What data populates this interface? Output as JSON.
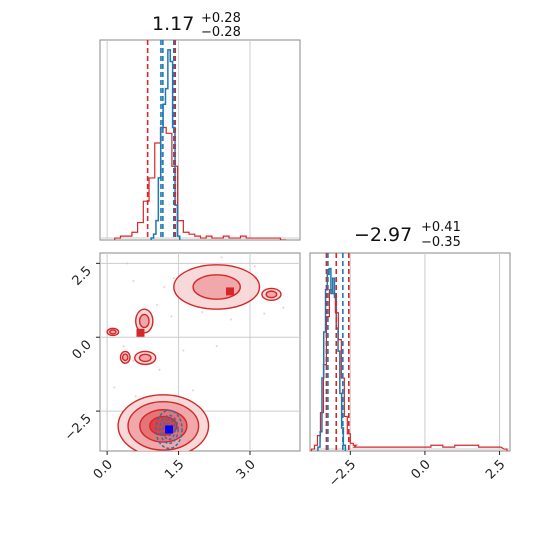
{
  "chart_data": {
    "type": "corner",
    "parameters": [
      {
        "median": "1.17",
        "upper": "+0.28",
        "lower": "−0.28",
        "range": [
          -0.15,
          4.05
        ],
        "ticks": [
          {
            "v": 0.0,
            "label": "0.0"
          },
          {
            "v": 1.5,
            "label": "1.5"
          },
          {
            "v": 3.0,
            "label": "3.0"
          }
        ],
        "quantiles_red": [
          0.85,
          1.43
        ],
        "quantiles_blue": [
          1.13,
          1.17,
          1.4
        ],
        "hist_red_x": [
          0.22,
          0.34,
          0.46,
          0.58,
          0.7,
          0.82,
          0.94,
          1.06,
          1.18,
          1.3,
          1.42,
          1.54,
          1.66,
          1.78,
          1.9,
          2.02,
          2.14,
          2.26,
          2.38,
          2.5,
          2.62,
          2.74,
          2.86,
          2.98,
          3.1,
          3.22,
          3.34,
          3.46,
          3.58,
          3.7
        ],
        "hist_red_y": [
          0.01,
          0.02,
          0.02,
          0.04,
          0.09,
          0.2,
          0.32,
          0.5,
          0.58,
          0.55,
          0.38,
          0.1,
          0.04,
          0.03,
          0.02,
          0.01,
          0.02,
          0.01,
          0.01,
          0.02,
          0.01,
          0.01,
          0.02,
          0.01,
          0.01,
          0.01,
          0.01,
          0.01,
          0.01,
          0.0
        ],
        "hist_blue_x": [
          0.95,
          1.0,
          1.05,
          1.1,
          1.15,
          1.2,
          1.25,
          1.3,
          1.35,
          1.4,
          1.45,
          1.5
        ],
        "hist_blue_y": [
          0.01,
          0.03,
          0.1,
          0.32,
          0.58,
          0.7,
          0.78,
          0.98,
          0.92,
          0.58,
          0.18,
          0.02
        ]
      },
      {
        "median": "−2.97",
        "upper": "+0.41",
        "lower": "−0.35",
        "range": [
          -3.85,
          2.85
        ],
        "ticks": [
          {
            "v": -2.5,
            "label": "−2.5"
          },
          {
            "v": 0.0,
            "label": "0.0"
          },
          {
            "v": 2.5,
            "label": "2.5"
          }
        ],
        "quantiles_red": [
          -3.3,
          -2.97,
          -2.55
        ],
        "quantiles_blue": [
          -3.25,
          -2.75
        ],
        "hist_red_x": [
          -3.75,
          -3.65,
          -3.55,
          -3.45,
          -3.35,
          -3.25,
          -3.15,
          -3.05,
          -2.95,
          -2.85,
          -2.75,
          -2.65,
          -2.55,
          -2.45,
          -2.35,
          -2.25,
          -2.0,
          -1.6,
          -1.2,
          -0.8,
          -0.4,
          0.0,
          0.4,
          0.8,
          1.2,
          1.6,
          2.0,
          2.4,
          2.7
        ],
        "hist_red_y": [
          0.01,
          0.03,
          0.08,
          0.2,
          0.45,
          0.7,
          0.84,
          0.82,
          0.72,
          0.58,
          0.38,
          0.18,
          0.09,
          0.04,
          0.03,
          0.02,
          0.02,
          0.02,
          0.02,
          0.02,
          0.02,
          0.02,
          0.03,
          0.02,
          0.03,
          0.03,
          0.02,
          0.02,
          0.01
        ],
        "hist_blue_x": [
          -3.55,
          -3.48,
          -3.42,
          -3.36,
          -3.3,
          -3.24,
          -3.18,
          -3.12,
          -3.06,
          -3.0,
          -2.94,
          -2.88,
          -2.82,
          -2.76,
          -2.7
        ],
        "hist_blue_y": [
          0.02,
          0.1,
          0.38,
          0.62,
          0.84,
          0.92,
          0.95,
          0.82,
          0.9,
          0.8,
          0.64,
          0.52,
          0.3,
          0.12,
          0.03
        ]
      }
    ],
    "scatter_points": [
      [
        0.42,
        2.5
      ],
      [
        0.55,
        1.9
      ],
      [
        1.2,
        1.7
      ],
      [
        1.4,
        2.0
      ],
      [
        1.55,
        1.9
      ],
      [
        1.95,
        2.3
      ],
      [
        2.4,
        2.7
      ],
      [
        3.1,
        2.4
      ],
      [
        3.5,
        1.3
      ],
      [
        3.7,
        1.0
      ],
      [
        1.05,
        1.1
      ],
      [
        0.85,
        0.9
      ],
      [
        1.35,
        0.7
      ],
      [
        2.0,
        0.85
      ],
      [
        2.6,
        0.6
      ],
      [
        3.3,
        0.8
      ],
      [
        0.35,
        -0.3
      ],
      [
        0.55,
        -0.8
      ],
      [
        1.1,
        -1.1
      ],
      [
        1.6,
        -0.45
      ],
      [
        2.3,
        -0.3
      ],
      [
        0.15,
        -1.7
      ],
      [
        1.8,
        -1.8
      ],
      [
        0.6,
        -2.0
      ]
    ],
    "blobs_contour": [
      {
        "cx": 1.18,
        "cy": -3.0,
        "rx": 0.95,
        "ry": 1.05
      },
      {
        "cx": 0.78,
        "cy": 0.55,
        "rx": 0.18,
        "ry": 0.4
      },
      {
        "cx": 0.8,
        "cy": -0.7,
        "rx": 0.22,
        "ry": 0.22
      },
      {
        "cx": 0.38,
        "cy": -0.68,
        "rx": 0.1,
        "ry": 0.2
      },
      {
        "cx": 0.12,
        "cy": 0.18,
        "rx": 0.12,
        "ry": 0.12
      },
      {
        "cx": 2.3,
        "cy": 1.7,
        "rx": 0.9,
        "ry": 0.75
      },
      {
        "cx": 3.45,
        "cy": 1.45,
        "rx": 0.2,
        "ry": 0.2
      }
    ],
    "red_markers": [
      {
        "x": 2.58,
        "y": 1.55
      },
      {
        "x": 0.7,
        "y": 0.15
      }
    ],
    "blue_marker": {
      "x": 1.3,
      "y": -3.12
    },
    "colors": {
      "red": "#d62728",
      "blue": "#1f77b4",
      "dark_blue": "#0000ff",
      "grid": "#cccccc",
      "axis": "#888888"
    }
  }
}
